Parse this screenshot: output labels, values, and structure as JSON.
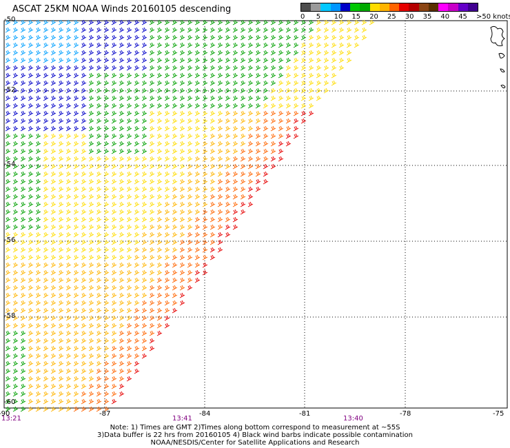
{
  "title": "ASCAT 25KM NOAA Winds 20160105 descending",
  "scale": {
    "colors": [
      "#4d4d4d",
      "#9a9a9a",
      "#00c8ff",
      "#0096ff",
      "#0000c8",
      "#00c800",
      "#00aa00",
      "#ffdc00",
      "#ffb400",
      "#ff6400",
      "#e60000",
      "#b40000",
      "#8b4513",
      "#5a3000",
      "#ff00ff",
      "#c800c8",
      "#6400c8",
      "#400090"
    ],
    "labels": [
      "0",
      "5",
      "10",
      "15",
      "20",
      "25",
      "30",
      "35",
      "40",
      "45",
      ">50 knots"
    ]
  },
  "lat_labels": [
    "-50",
    "-52",
    "-54",
    "-56",
    "-58",
    "-60"
  ],
  "lon_labels": [
    "-90",
    "-87",
    "-84",
    "-81",
    "-78",
    "-75"
  ],
  "time_labels": [
    "13:21",
    "13:41",
    "13:40"
  ],
  "notes": [
    "Note: 1) Times are GMT 2)Times along bottom correspond to measurement at ~55S",
    "3)Data buffer is 22 hrs from 20160105 4) Black wind barbs indicate possible contamination",
    "NOAA/NESDIS/Center for Satellite Applications and Research"
  ]
}
